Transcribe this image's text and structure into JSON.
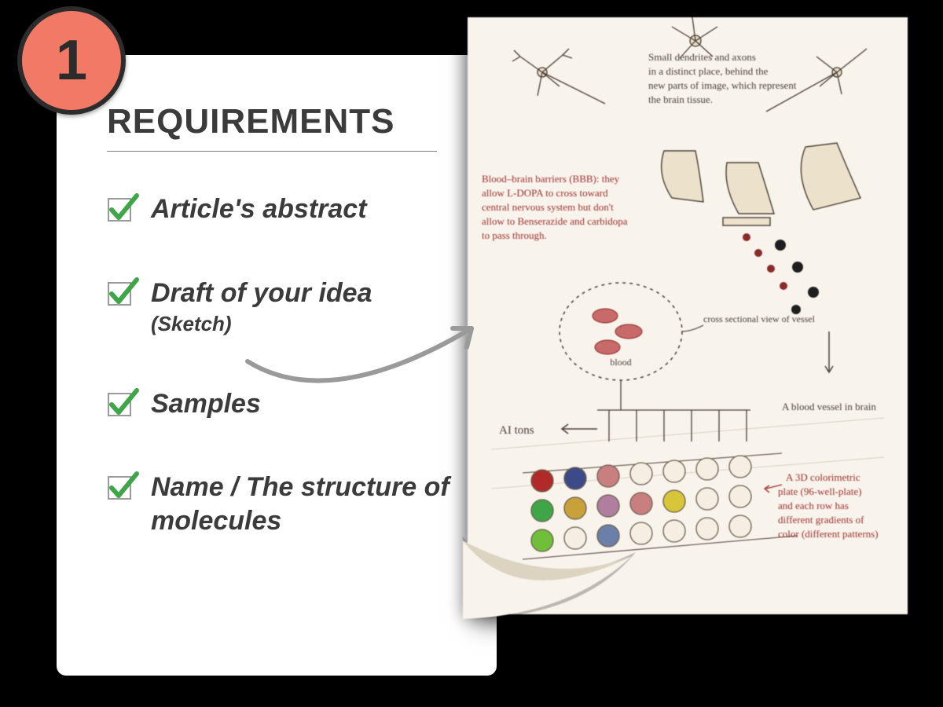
{
  "badge": {
    "number": "1",
    "bg_color": "#f27965",
    "border_color": "#2c2c2c",
    "text_color": "#2c2c2c"
  },
  "card": {
    "title": "REQUIREMENTS",
    "title_color": "#3b3b3b",
    "bg_color": "#ffffff",
    "rule_color": "#7d7d7d",
    "items": [
      {
        "label": "Article's abstract",
        "sub": ""
      },
      {
        "label": "Draft of your idea",
        "sub": "(Sketch)"
      },
      {
        "label": "Samples",
        "sub": ""
      },
      {
        "label": "Name / The structure of molecules",
        "sub": ""
      }
    ],
    "check_box_stroke": "#9a9a9a",
    "check_mark_color": "#3fa648"
  },
  "arrow": {
    "stroke": "#9a9a9a",
    "width": 6
  },
  "paper": {
    "bg_color": "#f8f4ec",
    "ink_dark": "#4a3e34",
    "ink_red": "#9b2e2e",
    "curl_shadow": "#a89f8f",
    "notes": {
      "top_text_lines": [
        "Small dendrites and axons",
        "in a distinct place, behind the",
        "new parts of image, which represent",
        "the brain tissue."
      ],
      "left_red_lines": [
        "Blood–brain barriers (BBB): they",
        "allow L-DOPA to cross toward",
        "central nervous system but don't",
        "allow to Benserazide and carbidopa",
        "to pass through."
      ],
      "cross_section_label": "cross sectional view of vessel",
      "blood_label": "blood",
      "ai_label": "AI  tons",
      "right_arrow_label": "A blood vessel in brain",
      "bottom_red_lines": [
        "A 3D colorimetric",
        "plate (96-well-plate)",
        "and each row has",
        "different gradients of",
        "color (different patterns)"
      ]
    },
    "well_plate": {
      "rows": 3,
      "cols": 7,
      "well_colors": [
        [
          "#b02a2a",
          "#3c4a8a",
          "#c97f7f",
          "#cfc9bd",
          "#cfc9bd",
          "#cfc9bd",
          "#cfc9bd"
        ],
        [
          "#3fa648",
          "#c8a13a",
          "#b07f9f",
          "#c97f7f",
          "#d8c63a",
          "#cfc9bd",
          "#cfc9bd"
        ],
        [
          "#6fbf3a",
          "#cfc9bd",
          "#6b7fa8",
          "#cfc9bd",
          "#cfc9bd",
          "#cfc9bd",
          "#cfc9bd"
        ]
      ],
      "well_radius": 14,
      "well_stroke": "#6b5f4f"
    }
  }
}
